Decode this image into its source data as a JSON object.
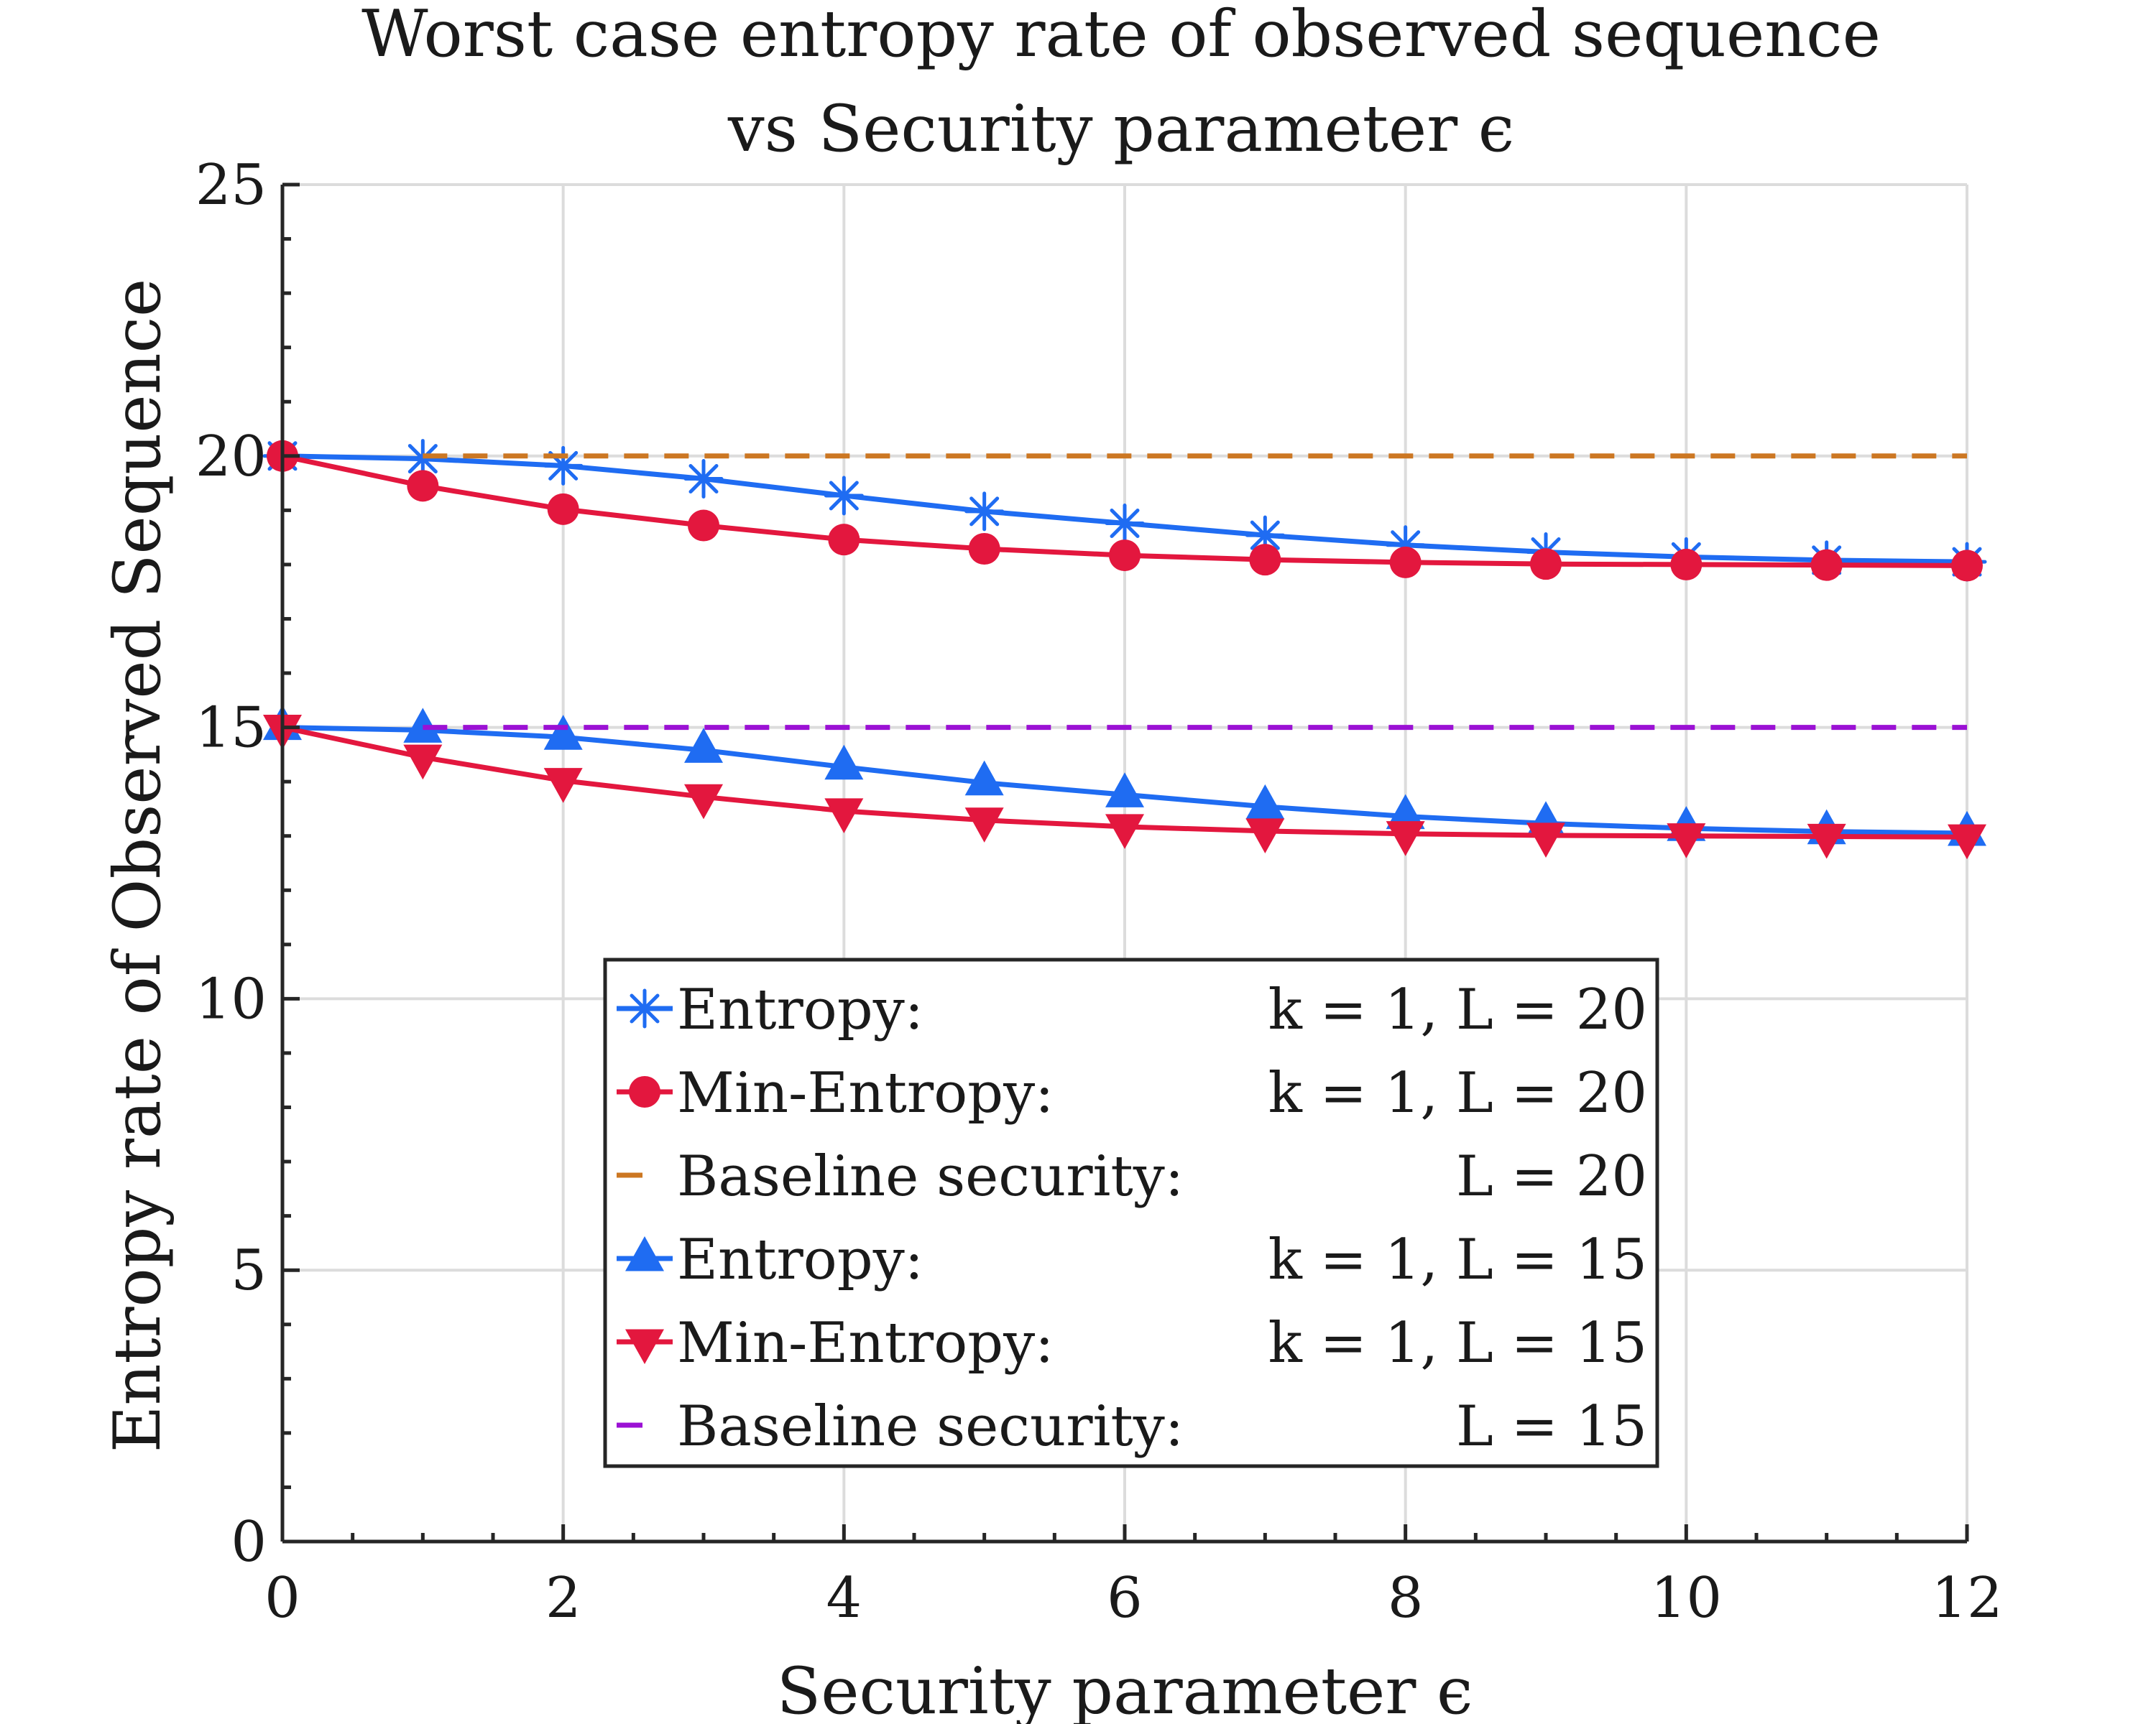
{
  "chart_data": {
    "type": "line",
    "title_lines": [
      "Worst case entropy rate of observed sequence",
      "vs Security parameter ϵ"
    ],
    "xlabel": "Security parameter ϵ",
    "ylabel": "Entropy rate of Observed Sequence",
    "xlim": [
      0,
      12
    ],
    "ylim": [
      0,
      25
    ],
    "xticks": [
      0,
      2,
      4,
      6,
      8,
      10,
      12
    ],
    "yticks": [
      0,
      5,
      10,
      15,
      20,
      25
    ],
    "grid": true,
    "legend_position": "bottom-center",
    "x": [
      0,
      1,
      2,
      3,
      4,
      5,
      6,
      7,
      8,
      9,
      10,
      11,
      12
    ],
    "series": [
      {
        "name": "Entropy: k = 1, L = 20",
        "legend_left": "Entropy:",
        "legend_right": "k = 1, L = 20",
        "color": "#1f6cf2",
        "marker": "asterisk",
        "line": "solid",
        "values": [
          20.0,
          19.95,
          19.82,
          19.58,
          19.27,
          18.98,
          18.76,
          18.54,
          18.36,
          18.23,
          18.14,
          18.08,
          18.05
        ]
      },
      {
        "name": "Min-Entropy: k = 1, L = 20",
        "legend_left": "Min-Entropy:",
        "legend_right": "k = 1, L = 20",
        "color": "#e3173e",
        "marker": "circle",
        "line": "solid",
        "values": [
          20.0,
          19.45,
          19.02,
          18.72,
          18.46,
          18.29,
          18.17,
          18.09,
          18.04,
          18.01,
          18.0,
          17.99,
          17.98
        ]
      },
      {
        "name": "Baseline security: L = 20",
        "legend_left": "Baseline security:",
        "legend_right": "L = 20",
        "color": "#cc7722",
        "marker": "none",
        "line": "dashed",
        "x": [
          1,
          12
        ],
        "values": [
          20,
          20
        ]
      },
      {
        "name": "Entropy: k = 1, L = 15",
        "legend_left": "Entropy:",
        "legend_right": "k = 1, L = 15",
        "color": "#1f6cf2",
        "marker": "triangle-up",
        "line": "solid",
        "values": [
          15.0,
          14.95,
          14.82,
          14.58,
          14.27,
          13.98,
          13.76,
          13.54,
          13.36,
          13.23,
          13.14,
          13.08,
          13.05
        ]
      },
      {
        "name": "Min-Entropy: k = 1, L = 15",
        "legend_left": "Min-Entropy:",
        "legend_right": "k = 1, L = 15",
        "color": "#e3173e",
        "marker": "triangle-down",
        "line": "solid",
        "values": [
          15.0,
          14.45,
          14.02,
          13.72,
          13.46,
          13.29,
          13.17,
          13.09,
          13.04,
          13.01,
          13.0,
          12.99,
          12.98
        ]
      },
      {
        "name": "Baseline security: L = 15",
        "legend_left": "Baseline security:",
        "legend_right": "L = 15",
        "color": "#9b11d4",
        "marker": "none",
        "line": "dashed",
        "x": [
          1,
          12
        ],
        "values": [
          15,
          15
        ]
      }
    ]
  }
}
